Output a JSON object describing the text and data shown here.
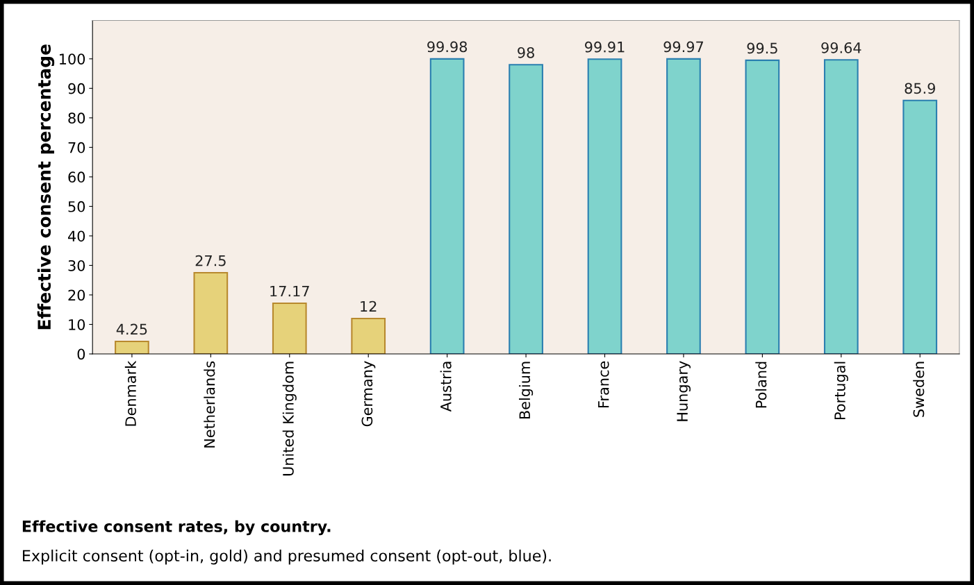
{
  "chart_data": {
    "type": "bar",
    "title": "Effective consent rates, by country.",
    "subtitle": "Explicit consent (opt-in, gold) and presumed consent (opt-out, blue).",
    "ylabel": "Effective consent percentage",
    "categories": [
      "Denmark",
      "Netherlands",
      "United Kingdom",
      "Germany",
      "Austria",
      "Belgium",
      "France",
      "Hungary",
      "Poland",
      "Portugal",
      "Sweden"
    ],
    "values": [
      4.25,
      27.5,
      17.17,
      12,
      99.98,
      98,
      99.91,
      99.97,
      99.5,
      99.64,
      85.9
    ],
    "colors": [
      "#e6d27a",
      "#e6d27a",
      "#e6d27a",
      "#e6d27a",
      "#7fd3cc",
      "#7fd3cc",
      "#7fd3cc",
      "#7fd3cc",
      "#7fd3cc",
      "#7fd3cc",
      "#7fd3cc"
    ],
    "ylim": [
      0,
      113
    ],
    "yticks": [
      0,
      10,
      20,
      30,
      40,
      50,
      60,
      70,
      80,
      90,
      100
    ],
    "grid": false,
    "data_labels": true
  }
}
